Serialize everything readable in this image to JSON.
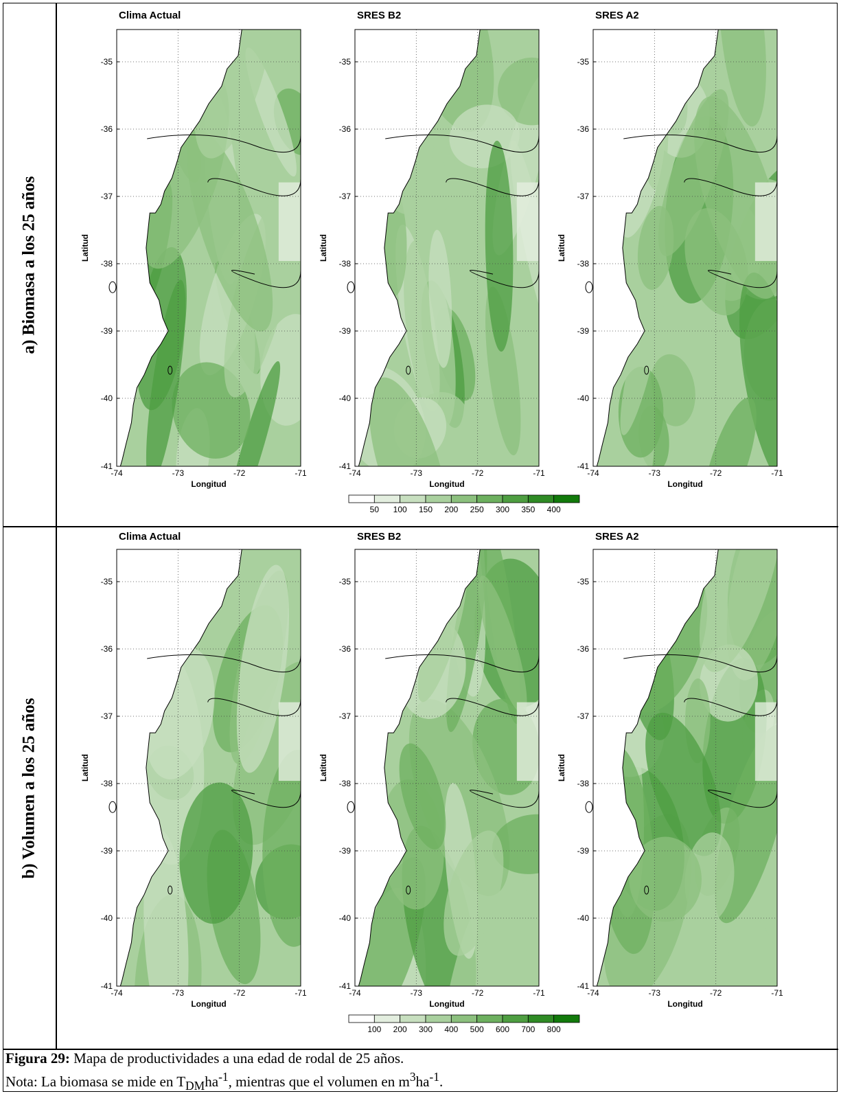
{
  "rows": [
    {
      "label": "a) Biomasa a los 25 años",
      "maps": [
        {
          "title": "Clima Actual"
        },
        {
          "title": "SRES B2"
        },
        {
          "title": "SRES A2"
        }
      ],
      "colorbar": {
        "ticks": [
          "50",
          "100",
          "150",
          "200",
          "250",
          "300",
          "350",
          "400"
        ]
      }
    },
    {
      "label": "b) Volumen a los 25 años",
      "maps": [
        {
          "title": "Clima Actual"
        },
        {
          "title": "SRES B2"
        },
        {
          "title": "SRES A2"
        }
      ],
      "colorbar": {
        "ticks": [
          "100",
          "200",
          "300",
          "400",
          "500",
          "600",
          "700",
          "800"
        ]
      }
    }
  ],
  "axes": {
    "ylabel": "Latitud",
    "xlabel": "Longitud",
    "yticks": [
      "-35",
      "-36",
      "-37",
      "-38",
      "-39",
      "-40",
      "-41"
    ],
    "xticks": [
      "-74",
      "-73",
      "-72",
      "-71"
    ]
  },
  "caption": {
    "bold": "Figura 29:",
    "line1": " Mapa de productividades a una edad de rodal de 25 años.",
    "line2_a": "Nota: La biomasa se mide en T",
    "sub": "DM",
    "line2_b": "ha",
    "sup1": "-1",
    "line2_c": ", mientras que el volumen en m",
    "sup2": "3",
    "line2_d": "ha",
    "sup3": "-1",
    "line2_e": "."
  },
  "colors": {
    "scale": [
      "#ffffff",
      "#e3eedf",
      "#c7dfbf",
      "#a9d09e",
      "#8cc07e",
      "#6db05f",
      "#4e9e41",
      "#2f8b25",
      "#127a0b"
    ]
  }
}
